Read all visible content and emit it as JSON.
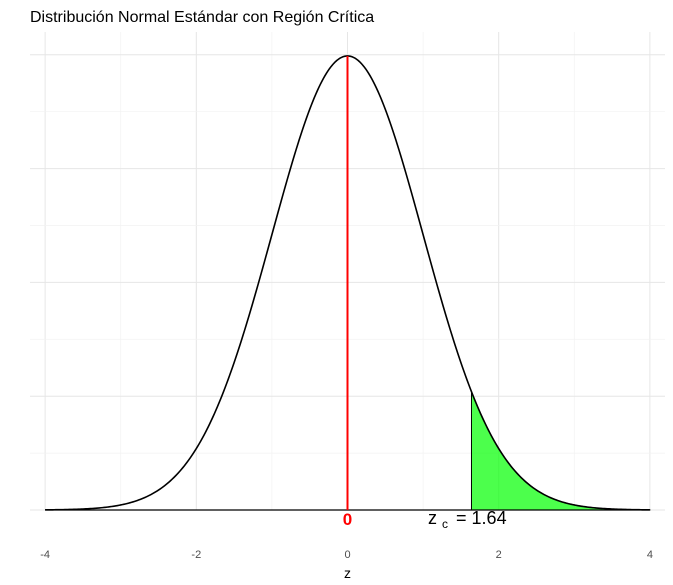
{
  "chart_data": {
    "type": "area",
    "title": "Distribución Normal Estándar con Región Crítica",
    "xlabel": "z",
    "ylabel": "",
    "xlim": [
      -4.2,
      4.2
    ],
    "ylim": [
      0,
      0.42
    ],
    "x_ticks": [
      -4,
      -2,
      0,
      2,
      4
    ],
    "x_tick_labels": [
      "-4",
      "-2",
      "0",
      "2",
      "4"
    ],
    "y_ticks": [
      0,
      0.1,
      0.2,
      0.3,
      0.4
    ],
    "y_tick_labels": [
      "",
      "",
      "",
      "",
      ""
    ],
    "grid": true,
    "series": [
      {
        "kind": "density-curve",
        "distribution": "standard normal",
        "x_range": [
          -4,
          4
        ],
        "color": "#000000"
      }
    ],
    "mean_line": {
      "x": 0,
      "color": "#ff0000",
      "label": "0"
    },
    "critical_region": {
      "z_c": 1.64,
      "from": 1.64,
      "to": 4,
      "fill_color": "#00ff00",
      "fill_opacity": 0.7,
      "label_main": "z",
      "label_sub": "c",
      "label_value": "= 1.64"
    }
  }
}
